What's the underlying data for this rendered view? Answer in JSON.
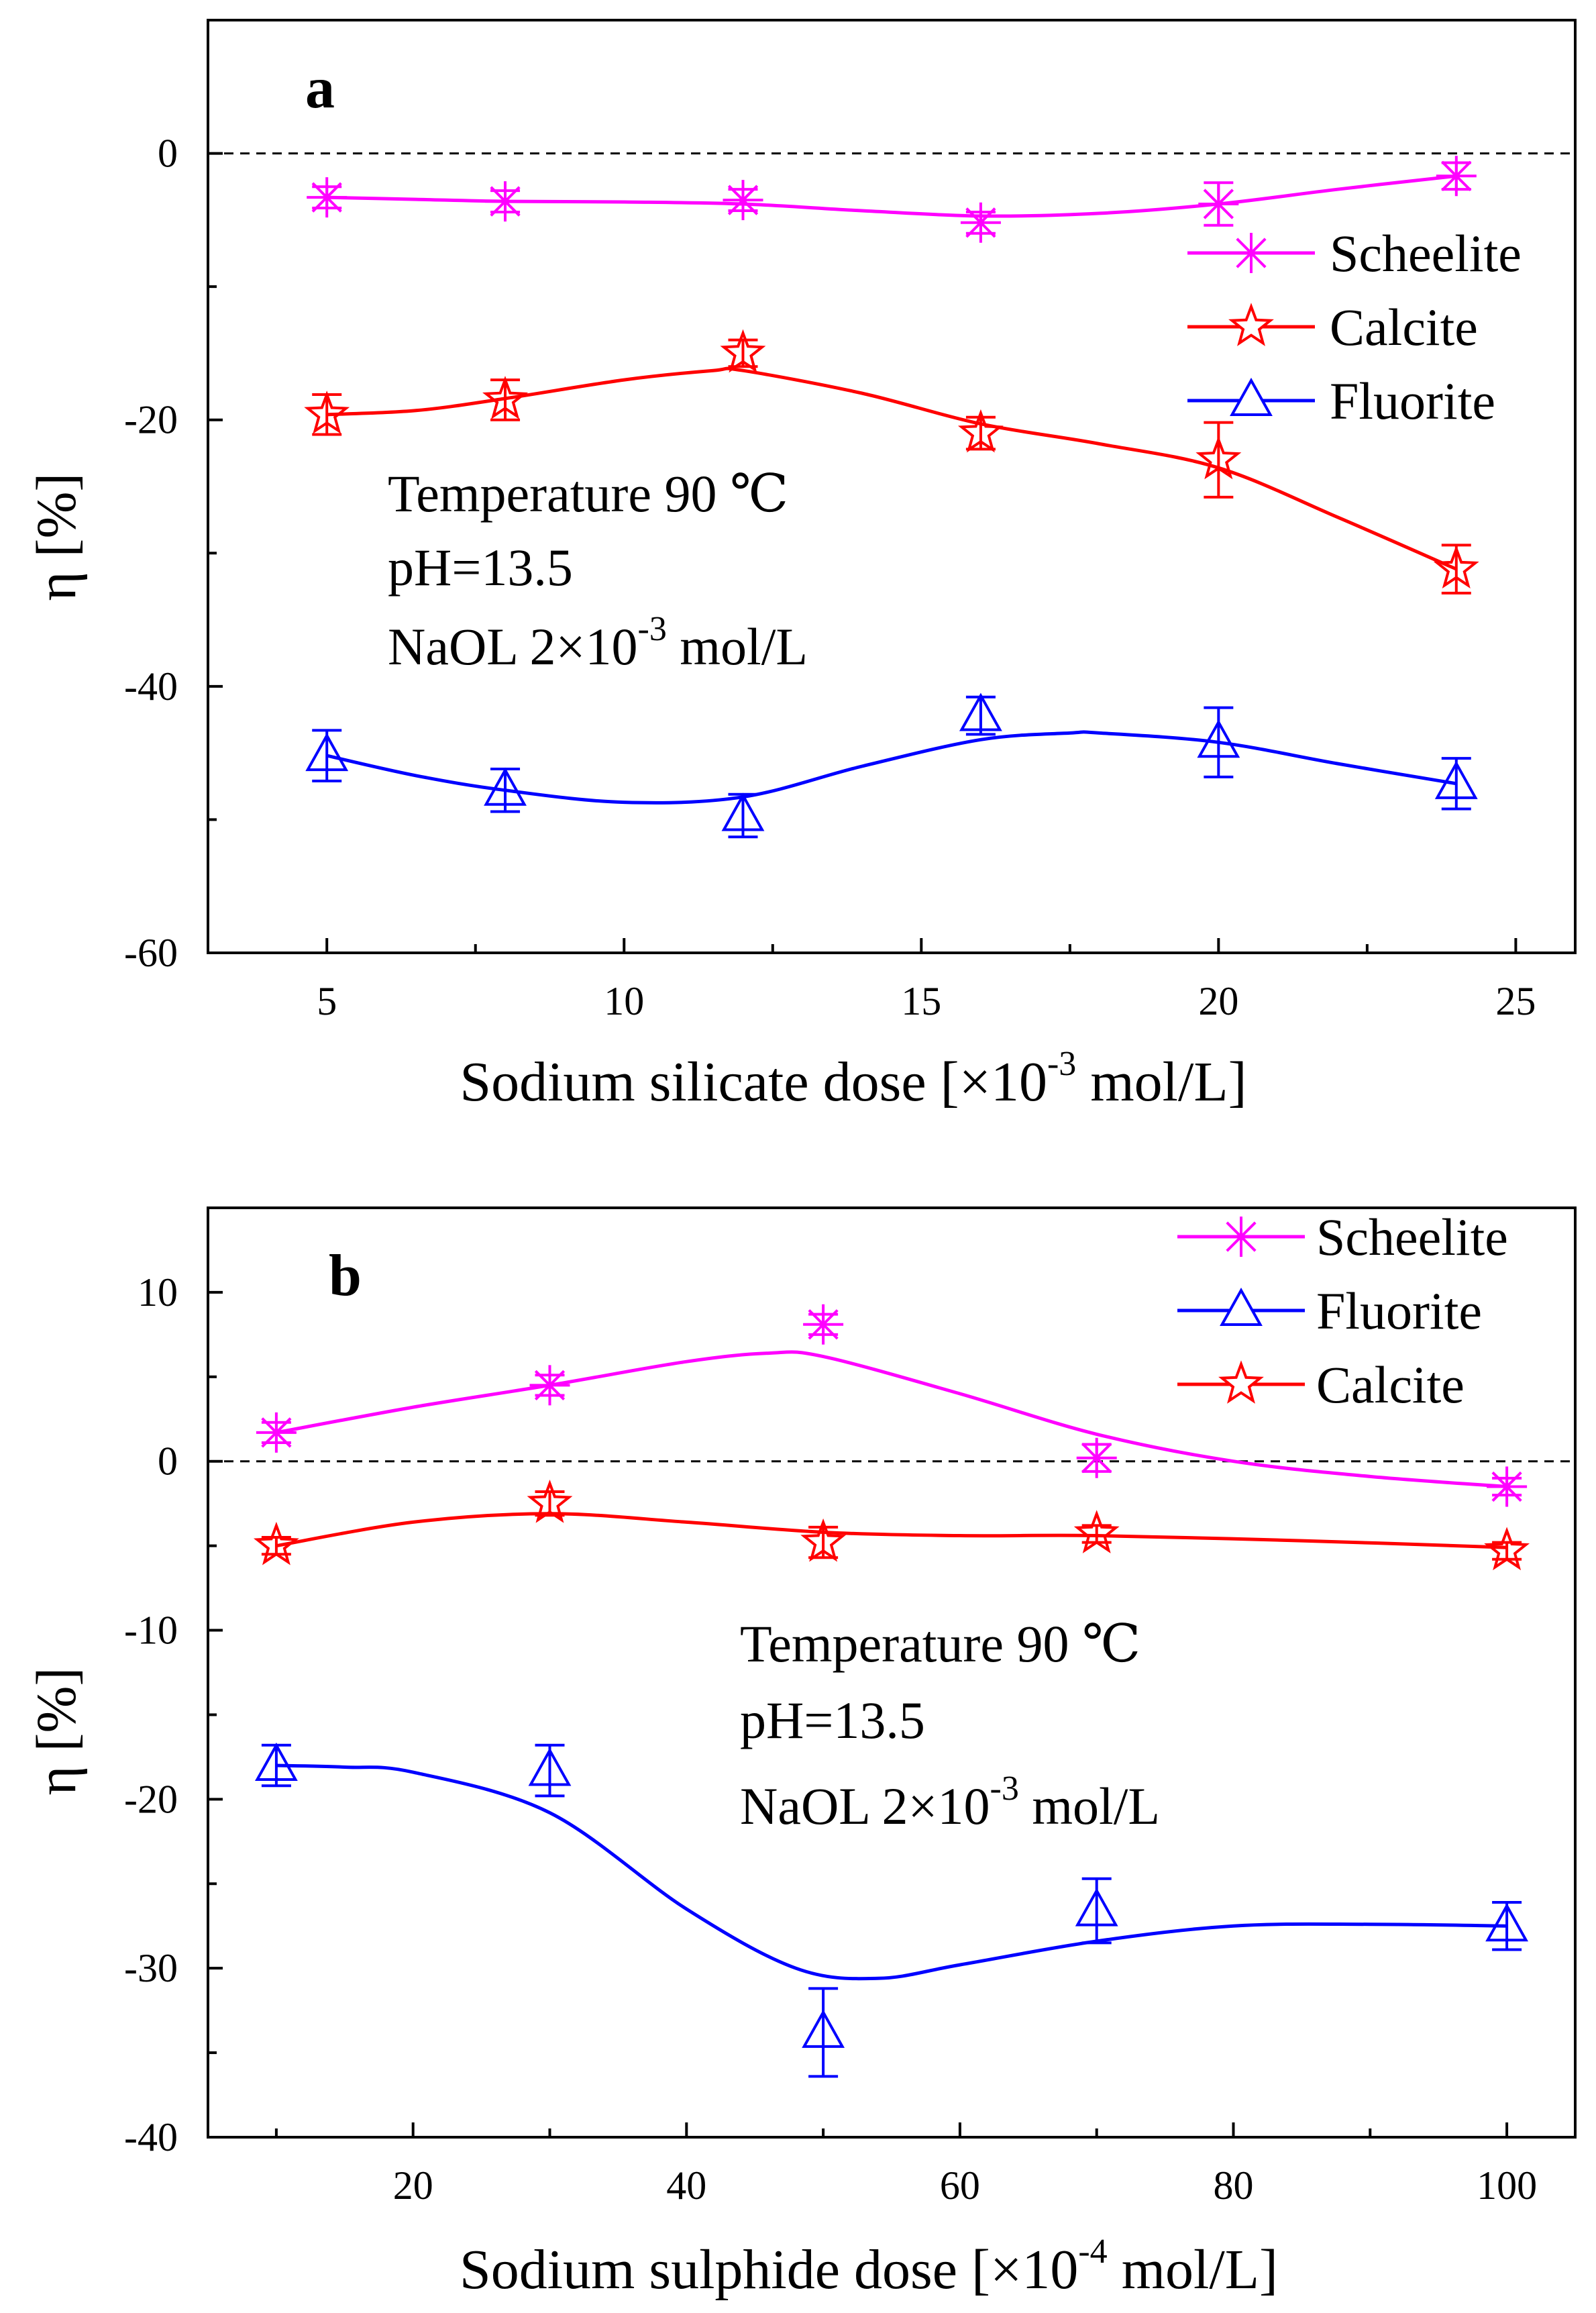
{
  "chart_data": [
    {
      "type": "line",
      "panel_label": "a",
      "xlabel": "Sodium silicate dose [×10",
      "xlabel_exp": "-3",
      "xlabel_unit": " mol/L]",
      "ylabel": "η [%]",
      "xlim": [
        3,
        26
      ],
      "ylim": [
        -60,
        10
      ],
      "xticks": [
        5,
        10,
        15,
        20,
        25
      ],
      "xtick_labels": [
        "5",
        "10",
        "15",
        "20",
        "25"
      ],
      "yticks": [
        0,
        -20,
        -40,
        -60
      ],
      "ytick_labels": [
        "0",
        "-20",
        "-40",
        "-60"
      ],
      "reference_line": 0,
      "legend": {
        "position": "top-right",
        "entries": [
          "Scheelite",
          "Calcite",
          "Fluorite"
        ]
      },
      "annotations": [
        "Temperature 90 ℃",
        "pH=13.5"
      ],
      "annotation_reagent": {
        "text": "NaOL 2×10",
        "exp": "-3",
        "unit": " mol/L"
      },
      "series": [
        {
          "name": "Scheelite",
          "marker": "asterisk",
          "color": "#ff00ff",
          "x": [
            5,
            8,
            12,
            16,
            20,
            24
          ],
          "values": [
            -3.3,
            -3.6,
            -3.5,
            -5.2,
            -3.8,
            -1.7
          ],
          "errors": [
            0.8,
            0.8,
            0.8,
            0.8,
            1.6,
            1.0
          ],
          "curve": [
            [
              5,
              -3.3
            ],
            [
              6.5,
              -3.45
            ],
            [
              8,
              -3.6
            ],
            [
              10,
              -3.65
            ],
            [
              12,
              -3.8
            ],
            [
              14,
              -4.3
            ],
            [
              16,
              -4.7
            ],
            [
              18,
              -4.5
            ],
            [
              20,
              -3.8
            ],
            [
              22,
              -2.7
            ],
            [
              24,
              -1.7
            ]
          ]
        },
        {
          "name": "Calcite",
          "marker": "star",
          "color": "#ff0000",
          "x": [
            5,
            8,
            12,
            16,
            20,
            24
          ],
          "values": [
            -19.6,
            -18.5,
            -15.0,
            -21.0,
            -23.0,
            -31.2
          ],
          "errors": [
            1.5,
            1.5,
            1.0,
            1.2,
            2.8,
            1.8
          ],
          "curve": [
            [
              5,
              -19.6
            ],
            [
              6.5,
              -19.3
            ],
            [
              8,
              -18.4
            ],
            [
              10,
              -17.0
            ],
            [
              11.5,
              -16.3
            ],
            [
              12,
              -16.3
            ],
            [
              14,
              -18.0
            ],
            [
              16,
              -20.3
            ],
            [
              18,
              -21.8
            ],
            [
              20,
              -23.6
            ],
            [
              22,
              -27.3
            ],
            [
              24,
              -31.2
            ]
          ]
        },
        {
          "name": "Fluorite",
          "marker": "triangle",
          "color": "#0000ff",
          "x": [
            5,
            8,
            12,
            16,
            20,
            24
          ],
          "values": [
            -45.2,
            -47.8,
            -49.7,
            -42.2,
            -44.2,
            -47.3
          ],
          "errors": [
            1.9,
            1.6,
            1.6,
            1.4,
            2.6,
            1.9
          ],
          "curve": [
            [
              5,
              -45.2
            ],
            [
              6.5,
              -46.7
            ],
            [
              8,
              -47.8
            ],
            [
              10,
              -48.7
            ],
            [
              12,
              -48.3
            ],
            [
              14,
              -46.0
            ],
            [
              16,
              -44.0
            ],
            [
              17.5,
              -43.5
            ],
            [
              18,
              -43.5
            ],
            [
              20,
              -44.2
            ],
            [
              22,
              -45.8
            ],
            [
              24,
              -47.3
            ]
          ]
        }
      ]
    },
    {
      "type": "line",
      "panel_label": "b",
      "xlabel": "Sodium sulphide dose [×10",
      "xlabel_exp": "-4",
      "xlabel_unit": " mol/L]",
      "ylabel": "η [%]",
      "xlim": [
        5,
        105
      ],
      "ylim": [
        -40,
        15
      ],
      "xticks": [
        20,
        40,
        60,
        80,
        100
      ],
      "xtick_labels": [
        "20",
        "40",
        "60",
        "80",
        "100"
      ],
      "yticks": [
        10,
        0,
        -10,
        -20,
        -30,
        -40
      ],
      "ytick_labels": [
        "10",
        "0",
        "-10",
        "-20",
        "-30",
        "-40"
      ],
      "reference_line": 0,
      "legend": {
        "position": "top-right",
        "entries": [
          "Scheelite",
          "Fluorite",
          "Calcite"
        ]
      },
      "annotations": [
        "Temperature 90 ℃",
        "pH=13.5"
      ],
      "annotation_reagent": {
        "text": "NaOL 2×10",
        "exp": "-3",
        "unit": " mol/L"
      },
      "series": [
        {
          "name": "Scheelite",
          "marker": "asterisk",
          "color": "#ff00ff",
          "x": [
            10,
            30,
            50,
            70,
            100
          ],
          "values": [
            1.7,
            4.5,
            8.1,
            0.2,
            -1.5
          ],
          "errors": [
            0.6,
            0.6,
            0.6,
            0.8,
            0.5
          ],
          "curve": [
            [
              10,
              1.7
            ],
            [
              20,
              3.2
            ],
            [
              30,
              4.5
            ],
            [
              40,
              5.9
            ],
            [
              46,
              6.4
            ],
            [
              50,
              6.2
            ],
            [
              60,
              4.0
            ],
            [
              70,
              1.6
            ],
            [
              80,
              0.0
            ],
            [
              90,
              -0.9
            ],
            [
              100,
              -1.5
            ]
          ]
        },
        {
          "name": "Fluorite",
          "marker": "triangle",
          "color": "#0000ff",
          "x": [
            10,
            30,
            50,
            70,
            100
          ],
          "values": [
            -18.0,
            -18.3,
            -33.8,
            -26.6,
            -27.5
          ],
          "errors": [
            1.2,
            1.5,
            2.6,
            1.9,
            1.4
          ],
          "curve": [
            [
              10,
              -18.0
            ],
            [
              15,
              -18.1
            ],
            [
              20,
              -18.4
            ],
            [
              30,
              -20.8
            ],
            [
              40,
              -26.5
            ],
            [
              48,
              -30.0
            ],
            [
              54,
              -30.6
            ],
            [
              60,
              -29.8
            ],
            [
              70,
              -28.4
            ],
            [
              80,
              -27.5
            ],
            [
              90,
              -27.4
            ],
            [
              100,
              -27.5
            ]
          ]
        },
        {
          "name": "Calcite",
          "marker": "star",
          "color": "#ff0000",
          "x": [
            10,
            30,
            50,
            70,
            100
          ],
          "values": [
            -5.0,
            -2.5,
            -4.8,
            -4.3,
            -5.3
          ],
          "errors": [
            0.5,
            0.7,
            0.9,
            0.5,
            0.5
          ],
          "curve": [
            [
              10,
              -5.0
            ],
            [
              20,
              -3.6
            ],
            [
              30,
              -3.1
            ],
            [
              40,
              -3.6
            ],
            [
              50,
              -4.2
            ],
            [
              60,
              -4.4
            ],
            [
              70,
              -4.4
            ],
            [
              85,
              -4.7
            ],
            [
              100,
              -5.1
            ]
          ]
        }
      ]
    }
  ]
}
